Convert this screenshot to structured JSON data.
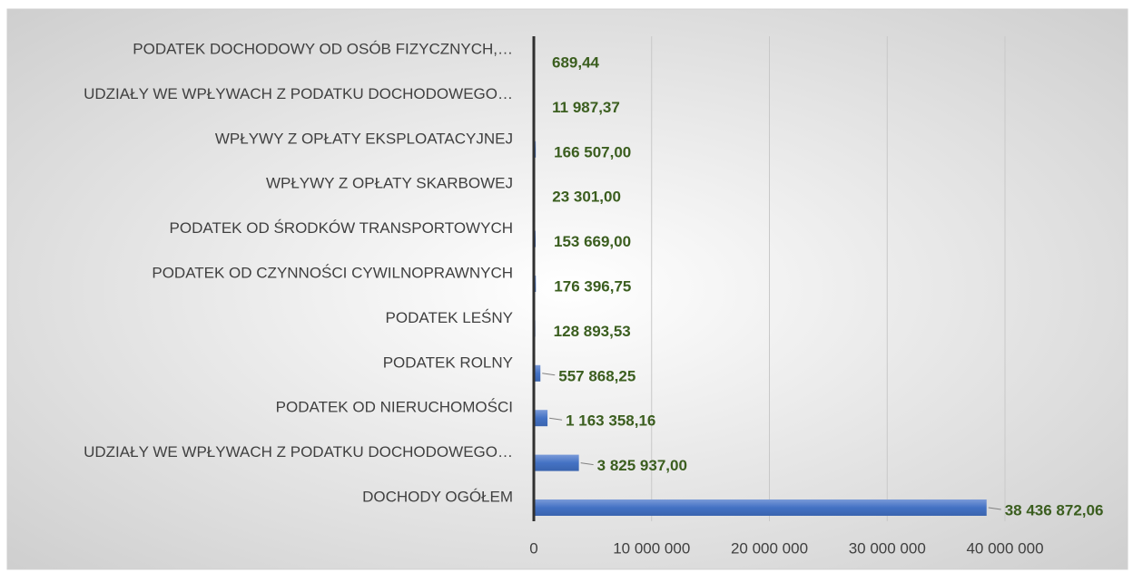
{
  "chart_data": {
    "type": "bar",
    "orientation": "horizontal",
    "categories": [
      "DOCHODY OGÓŁEM",
      "UDZIAŁY WE WPŁYWACH Z PODATKU DOCHODOWEGO…",
      "PODATEK OD NIERUCHOMOŚCI",
      "PODATEK ROLNY",
      "PODATEK LEŚNY",
      "PODATEK OD CZYNNOŚCI CYWILNOPRAWNYCH",
      "PODATEK OD ŚRODKÓW TRANSPORTOWYCH",
      "WPŁYWY Z OPŁATY SKARBOWEJ",
      "WPŁYWY Z OPŁATY EKSPLOATACYJNEJ",
      "UDZIAŁY WE WPŁYWACH Z PODATKU DOCHODOWEGO…",
      "PODATEK DOCHODOWY OD OSÓB FIZYCZNYCH,…"
    ],
    "values": [
      38436872.06,
      3825937.0,
      1163358.16,
      557868.25,
      128893.53,
      176396.75,
      153669.0,
      23301.0,
      166507.0,
      11987.37,
      689.44
    ],
    "value_labels": [
      "38 436 872,06",
      "3 825 937,00",
      "1 163 358,16",
      "557 868,25",
      "128 893,53",
      "176 396,75",
      "153 669,00",
      "23 301,00",
      "166 507,00",
      "11 987,37",
      "689,44"
    ],
    "color": "#4472c4",
    "xlim": [
      0,
      40000000
    ],
    "xticks": [
      0,
      {
        "value": 10000000,
        "label": "10 000 000"
      },
      {
        "value": 20000000,
        "label": "20 000 000"
      },
      {
        "value": 30000000,
        "label": "30 000 000"
      },
      {
        "value": 40000000,
        "label": "40 000 000"
      }
    ],
    "grid": true
  }
}
